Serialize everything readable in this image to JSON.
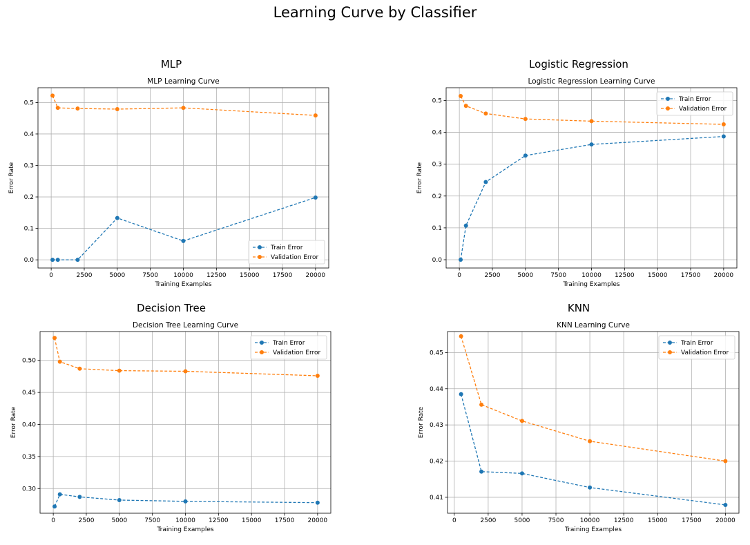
{
  "suptitle": "Learning Curve by Classifier",
  "colors": {
    "train": "#1f77b4",
    "validation": "#ff7f0e",
    "grid": "#b0b0b0"
  },
  "chart_data": [
    {
      "type": "line",
      "panel_title": "MLP",
      "title": "MLP Learning Curve",
      "xlabel": "Training Examples",
      "ylabel": "Error Rate",
      "xlim": [
        -1000,
        21000
      ],
      "ylim": [
        -0.026,
        0.547
      ],
      "xticks": [
        0,
        2500,
        5000,
        7500,
        10000,
        12500,
        15000,
        17500,
        20000
      ],
      "yticks": [
        0.0,
        0.1,
        0.2,
        0.3,
        0.4,
        0.5
      ],
      "ytick_labels": [
        "0.0",
        "0.1",
        "0.2",
        "0.3",
        "0.4",
        "0.5"
      ],
      "grid": true,
      "legend_position": "lower-right",
      "x": [
        100,
        500,
        2000,
        5000,
        10000,
        20000
      ],
      "series": [
        {
          "name": "Train Error",
          "values": [
            0.0,
            0.0,
            0.0,
            0.133,
            0.06,
            0.198
          ]
        },
        {
          "name": "Validation Error",
          "values": [
            0.522,
            0.483,
            0.481,
            0.479,
            0.483,
            0.459
          ]
        }
      ]
    },
    {
      "type": "line",
      "panel_title": "Logistic Regression",
      "title": "Logistic Regression Learning Curve",
      "xlabel": "Training Examples",
      "ylabel": "Error Rate",
      "xlim": [
        -1000,
        21000
      ],
      "ylim": [
        -0.026,
        0.54
      ],
      "xticks": [
        0,
        2500,
        5000,
        7500,
        10000,
        12500,
        15000,
        17500,
        20000
      ],
      "yticks": [
        0.0,
        0.1,
        0.2,
        0.3,
        0.4,
        0.5
      ],
      "ytick_labels": [
        "0.0",
        "0.1",
        "0.2",
        "0.3",
        "0.4",
        "0.5"
      ],
      "grid": true,
      "legend_position": "upper-right",
      "x": [
        100,
        500,
        2000,
        5000,
        10000,
        20000
      ],
      "series": [
        {
          "name": "Train Error",
          "values": [
            0.0,
            0.107,
            0.244,
            0.327,
            0.362,
            0.387
          ]
        },
        {
          "name": "Validation Error",
          "values": [
            0.514,
            0.483,
            0.459,
            0.442,
            0.435,
            0.425
          ]
        }
      ]
    },
    {
      "type": "line",
      "panel_title": "Decision Tree",
      "title": "Decision Tree Learning Curve",
      "xlabel": "Training Examples",
      "ylabel": "Error Rate",
      "xlim": [
        -1000,
        21000
      ],
      "ylim": [
        0.2615,
        0.545
      ],
      "xticks": [
        0,
        2500,
        5000,
        7500,
        10000,
        12500,
        15000,
        17500,
        20000
      ],
      "yticks": [
        0.3,
        0.35,
        0.4,
        0.45,
        0.5
      ],
      "ytick_labels": [
        "0.30",
        "0.35",
        "0.40",
        "0.45",
        "0.50"
      ],
      "grid": true,
      "legend_position": "upper-right",
      "x": [
        100,
        500,
        2000,
        5000,
        10000,
        20000
      ],
      "series": [
        {
          "name": "Train Error",
          "values": [
            0.272,
            0.291,
            0.287,
            0.282,
            0.28,
            0.278
          ]
        },
        {
          "name": "Validation Error",
          "values": [
            0.535,
            0.498,
            0.487,
            0.484,
            0.483,
            0.476
          ]
        }
      ]
    },
    {
      "type": "line",
      "panel_title": "KNN",
      "title": "KNN Learning Curve",
      "xlabel": "Training Examples",
      "ylabel": "Error Rate",
      "xlim": [
        -500,
        21000
      ],
      "ylim": [
        0.4056,
        0.4558
      ],
      "xticks": [
        0,
        2500,
        5000,
        7500,
        10000,
        12500,
        15000,
        17500,
        20000
      ],
      "yticks": [
        0.41,
        0.42,
        0.43,
        0.44,
        0.45
      ],
      "ytick_labels": [
        "0.41",
        "0.42",
        "0.43",
        "0.44",
        "0.45"
      ],
      "grid": true,
      "legend_position": "upper-right",
      "x": [
        500,
        2000,
        5000,
        10000,
        20000
      ],
      "series": [
        {
          "name": "Train Error",
          "values": [
            0.4385,
            0.4171,
            0.4166,
            0.4127,
            0.4079
          ]
        },
        {
          "name": "Validation Error",
          "values": [
            0.4545,
            0.4356,
            0.4311,
            0.4255,
            0.42
          ]
        }
      ]
    }
  ]
}
